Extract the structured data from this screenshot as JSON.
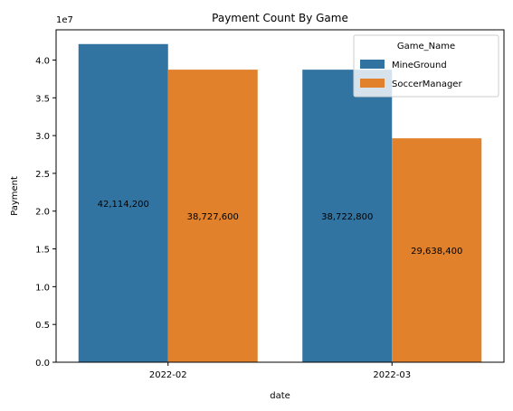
{
  "chart_data": {
    "type": "bar",
    "title": "Payment Count By Game",
    "xlabel": "date",
    "ylabel": "Payment",
    "offset_label": "1e7",
    "categories": [
      "2022-02",
      "2022-03"
    ],
    "series": [
      {
        "name": "MineGround",
        "color": "#3274a1",
        "values": [
          42114200,
          38722800
        ],
        "labels": [
          "42,114,200",
          "38,722,800"
        ]
      },
      {
        "name": "SoccerManager",
        "color": "#e1812c",
        "values": [
          38727600,
          29638400
        ],
        "labels": [
          "38,727,600",
          "29,638,400"
        ]
      }
    ],
    "ylim": [
      0,
      44000000
    ],
    "yticks": [
      0,
      5000000,
      10000000,
      15000000,
      20000000,
      25000000,
      30000000,
      35000000,
      40000000
    ],
    "ytick_labels": [
      "0.0",
      "0.5",
      "1.0",
      "1.5",
      "2.0",
      "2.5",
      "3.0",
      "3.5",
      "4.0"
    ],
    "legend": {
      "title": "Game_Name",
      "position": "top-right"
    },
    "grid": false
  }
}
